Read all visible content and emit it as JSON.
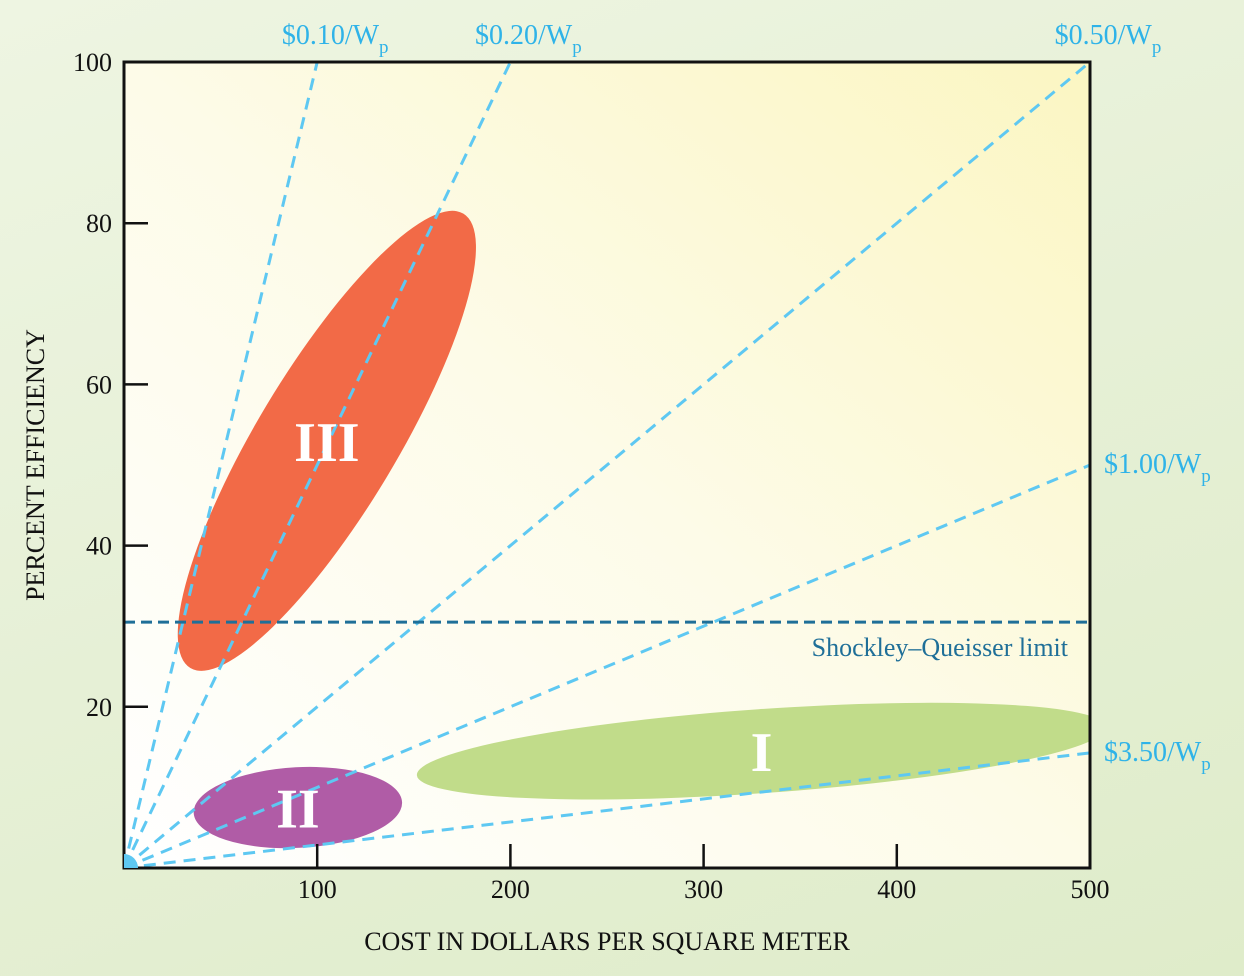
{
  "chart_data": {
    "type": "line",
    "xlabel": "COST IN DOLLARS PER SQUARE METER",
    "ylabel": "PERCENT EFFICIENCY",
    "xlim": [
      0,
      500
    ],
    "ylim": [
      0,
      100
    ],
    "x_ticks": [
      "100",
      "200",
      "300",
      "400",
      "500"
    ],
    "y_ticks": [
      "20",
      "40",
      "60",
      "80",
      "100"
    ],
    "grid": false,
    "cost_lines": [
      {
        "label": "$0.10/W",
        "subscript": "p",
        "cost_per_watt": 0.1,
        "color": "#5ec8f2"
      },
      {
        "label": "$0.20/W",
        "subscript": "p",
        "cost_per_watt": 0.2,
        "color": "#5ec8f2"
      },
      {
        "label": "$0.50/W",
        "subscript": "p",
        "cost_per_watt": 0.5,
        "color": "#5ec8f2"
      },
      {
        "label": "$1.00/W",
        "subscript": "p",
        "cost_per_watt": 1.0,
        "color": "#5ec8f2"
      },
      {
        "label": "$3.50/W",
        "subscript": "p",
        "cost_per_watt": 3.5,
        "color": "#5ec8f2"
      }
    ],
    "reference_line": {
      "label": "Shockley–Queisser limit",
      "y": 30.5,
      "color": "#1f6f98"
    },
    "regions": [
      {
        "label": "III",
        "color": "#f26a47",
        "x_center": 105,
        "y_center": 53,
        "x_extent": [
          44,
          186
        ],
        "y_extent": [
          22,
          84
        ]
      },
      {
        "label": "II",
        "color": "#b05ca6",
        "x_center": 90,
        "y_center": 7.5,
        "x_extent": [
          35,
          143
        ],
        "y_extent": [
          3,
          13
        ]
      },
      {
        "label": "I",
        "color": "#c1dc8a",
        "x_center": 330,
        "y_center": 14.5,
        "x_extent": [
          163,
          500
        ],
        "y_extent": [
          9,
          21
        ]
      }
    ]
  }
}
